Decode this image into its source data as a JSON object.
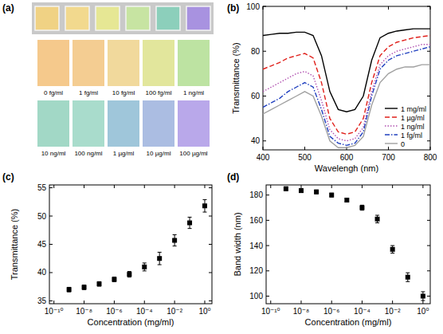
{
  "chart_data": [
    {
      "type": "swatches",
      "title": "(a)",
      "categories": [
        "0 fg/ml",
        "1 fg/ml",
        "10 fg/ml",
        "100 fg/ml",
        "1 ng/ml",
        "10 ng/ml",
        "100 ng/ml",
        "1 µg/ml",
        "10 µg/ml",
        "100 µg/ml"
      ],
      "colors": [
        "#f5c98c",
        "#f4cd92",
        "#f1d99c",
        "#e2e69c",
        "#bde3a2",
        "#a2d8c6",
        "#a9dccc",
        "#9fc6da",
        "#abbde2",
        "#b9a8ea"
      ],
      "slide_colors": [
        "#f0d284",
        "#f2d98e",
        "#e6e794",
        "#c7e4a2",
        "#8ccfbb",
        "#a892e0"
      ]
    },
    {
      "type": "line",
      "title": "(b)",
      "xlabel": "Wavelengh (nm)",
      "ylabel": "Transmittance (%)",
      "x": [
        400,
        420,
        440,
        460,
        480,
        500,
        520,
        540,
        560,
        580,
        600,
        620,
        640,
        660,
        680,
        700,
        720,
        740,
        760,
        780,
        800
      ],
      "series": [
        {
          "name": "1 mg/ml",
          "color": "#000000",
          "line_style": "solid",
          "values": [
            87,
            87.5,
            88,
            88,
            88.5,
            88.5,
            87,
            78,
            62,
            54,
            53,
            54,
            60,
            76,
            86,
            88,
            89,
            89.5,
            90,
            90,
            90
          ]
        },
        {
          "name": "1 µg/ml",
          "color": "#e0201b",
          "line_style": "dashed",
          "values": [
            72,
            73.5,
            75,
            77,
            78,
            79,
            77,
            66,
            50,
            44,
            43,
            44,
            50,
            66,
            78,
            82,
            84,
            85,
            86,
            86.5,
            87
          ]
        },
        {
          "name": "1 ng/ml",
          "color": "#b050b0",
          "line_style": "dotted",
          "values": [
            62,
            64,
            66,
            68,
            70,
            71,
            69,
            58,
            45,
            41,
            40,
            41,
            46,
            62,
            74,
            78,
            80,
            81,
            82,
            83,
            83
          ]
        },
        {
          "name": "1 fg/ml",
          "color": "#1f3fbf",
          "line_style": "dashdot",
          "values": [
            55,
            57,
            59,
            62,
            64,
            66,
            64,
            54,
            42,
            39,
            38,
            39,
            44,
            60,
            72,
            76,
            78,
            79,
            80,
            81,
            82
          ]
        },
        {
          "name": "0",
          "color": "#a0a0a0",
          "line_style": "solid",
          "values": [
            52,
            54,
            56,
            58,
            60,
            62,
            60,
            51,
            40,
            37,
            37,
            38,
            42,
            56,
            66,
            70,
            72,
            73,
            73,
            74,
            74
          ]
        }
      ],
      "xlim": [
        400,
        800
      ],
      "xticks": [
        400,
        500,
        600,
        700,
        800
      ],
      "ylim": [
        36,
        100
      ],
      "yticks": [
        40,
        60,
        80,
        100
      ],
      "legend": "lower right"
    },
    {
      "type": "scatter",
      "title": "(c)",
      "xlabel": "Concentration (mg/ml)",
      "ylabel": "Transmittance (%)",
      "x": [
        1e-09,
        1e-08,
        1e-07,
        1e-06,
        1e-05,
        0.0001,
        0.001,
        0.01,
        0.1,
        1
      ],
      "values": [
        37.0,
        37.4,
        38.0,
        38.8,
        39.7,
        41.0,
        42.5,
        45.7,
        48.8,
        51.8
      ],
      "errors": [
        0.4,
        0.4,
        0.4,
        0.4,
        0.5,
        0.7,
        1.1,
        1.0,
        1.0,
        1.1
      ],
      "log": "x",
      "marker": "square",
      "color": "#000000",
      "xlim": [
        5e-11,
        3
      ],
      "xticks": [
        {
          "value": 1e-10,
          "label": "10⁻¹⁰"
        },
        {
          "value": 1e-08,
          "label": "10⁻⁸"
        },
        {
          "value": 1e-06,
          "label": "10⁻⁶"
        },
        {
          "value": 0.0001,
          "label": "10⁻⁴"
        },
        {
          "value": 0.01,
          "label": "10⁻²"
        },
        {
          "value": 1,
          "label": "10⁰"
        }
      ],
      "ylim": [
        34.5,
        55.5
      ],
      "yticks": [
        35,
        40,
        45,
        50,
        55
      ]
    },
    {
      "type": "scatter",
      "title": "(d)",
      "xlabel": "Concentration (mg/ml)",
      "ylabel": "Band width (nm)",
      "x": [
        1e-09,
        1e-08,
        1e-07,
        1e-06,
        1e-05,
        0.0001,
        0.001,
        0.01,
        0.1,
        1
      ],
      "values": [
        185,
        183.5,
        182.5,
        180,
        176,
        170,
        161,
        137,
        115,
        100
      ],
      "errors": [
        1.5,
        1.5,
        1.5,
        1.5,
        1.5,
        2,
        3,
        3,
        3.5,
        3.5
      ],
      "log": "x",
      "marker": "square",
      "color": "#000000",
      "xlim": [
        5e-11,
        3
      ],
      "xticks": [
        {
          "value": 1e-10,
          "label": "10⁻¹⁰"
        },
        {
          "value": 1e-08,
          "label": "10⁻⁸"
        },
        {
          "value": 1e-06,
          "label": "10⁻⁶"
        },
        {
          "value": 0.0001,
          "label": "10⁻⁴"
        },
        {
          "value": 0.01,
          "label": "10⁻²"
        },
        {
          "value": 1,
          "label": "10⁰"
        }
      ],
      "ylim": [
        94,
        188
      ],
      "yticks": [
        100,
        120,
        140,
        160,
        180
      ]
    }
  ]
}
